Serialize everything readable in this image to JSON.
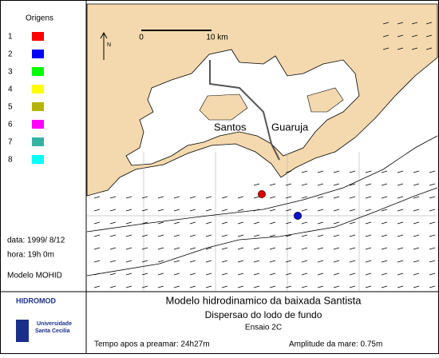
{
  "legend": {
    "title": "Origens",
    "items": [
      {
        "label": "1",
        "color": "#ff0000"
      },
      {
        "label": "2",
        "color": "#0000ff"
      },
      {
        "label": "3",
        "color": "#00ff00"
      },
      {
        "label": "4",
        "color": "#ffff00"
      },
      {
        "label": "5",
        "color": "#b4b400"
      },
      {
        "label": "6",
        "color": "#ff00ff"
      },
      {
        "label": "7",
        "color": "#33b3a0"
      },
      {
        "label": "8",
        "color": "#00ffff"
      }
    ]
  },
  "info": {
    "date": "data: 1999/ 8/12",
    "time": "hora: 19h 0m",
    "model": "Modelo MOHID"
  },
  "map": {
    "scale_start": "0",
    "scale_end": "10 km",
    "north": "N",
    "places": [
      "Santos",
      "Guaruja"
    ]
  },
  "footer": {
    "logo": "HIDROMOD",
    "university": [
      "Universidade",
      "Santa Cecilia"
    ],
    "title": "Modelo hidrodinamico da baixada Santista",
    "subtitle": "Dispersao do lodo de fundo",
    "test": "Ensaio 2C",
    "elapsed": "Tempo apos a preamar: 24h27m",
    "tide": "Amplitude da mare:  0.75m"
  }
}
